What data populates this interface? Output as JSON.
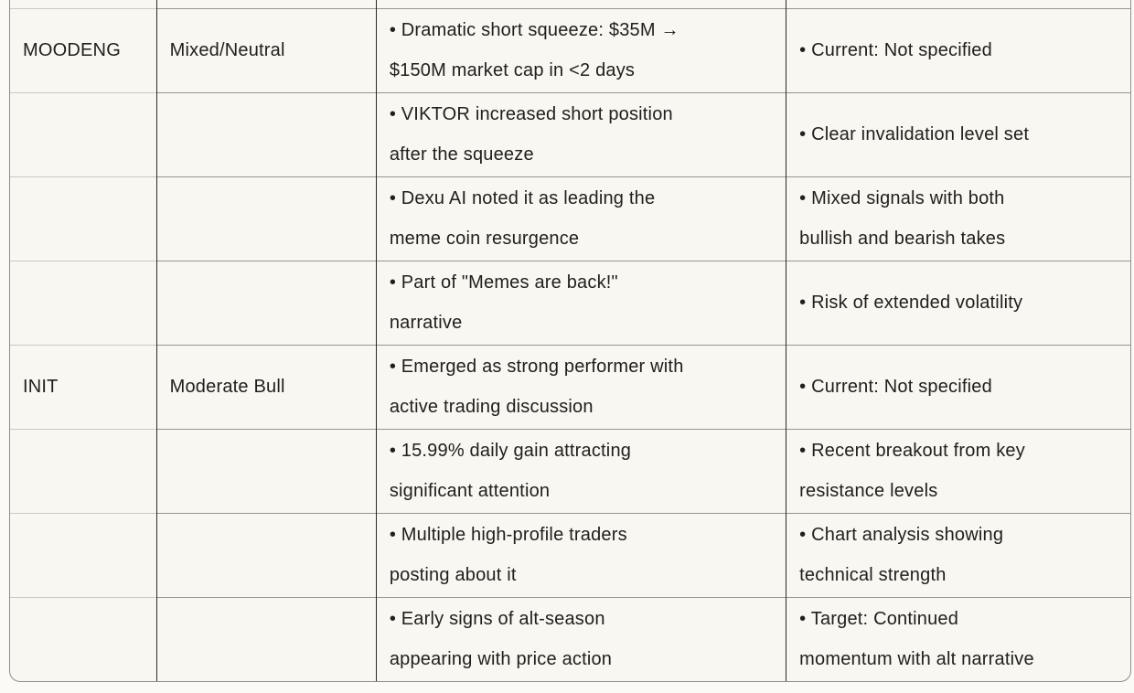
{
  "table": {
    "column_keys": [
      "token",
      "sentiment",
      "details",
      "levels"
    ],
    "rows": [
      {
        "token": "",
        "sentiment": "",
        "details": "",
        "levels": ""
      },
      {
        "token": "MOODENG",
        "sentiment": "Mixed/Neutral",
        "details": "• Dramatic short squeeze: $35M →\n$150M market cap in <2 days",
        "levels": "• Current: Not specified"
      },
      {
        "token": "",
        "sentiment": "",
        "details": "• VIKTOR increased short position\nafter the squeeze",
        "levels": "• Clear invalidation level set"
      },
      {
        "token": "",
        "sentiment": "",
        "details": "• Dexu AI noted it as leading the\nmeme coin resurgence",
        "levels": "• Mixed signals with both\nbullish and bearish takes"
      },
      {
        "token": "",
        "sentiment": "",
        "details": "• Part of \"Memes are back!\"\nnarrative",
        "levels": "• Risk of extended volatility"
      },
      {
        "token": "INIT",
        "sentiment": "Moderate Bull",
        "details": "• Emerged as strong performer with\nactive trading discussion",
        "levels": "• Current: Not specified"
      },
      {
        "token": "",
        "sentiment": "",
        "details": "• 15.99% daily gain attracting\nsignificant attention",
        "levels": "• Recent breakout from key\nresistance levels"
      },
      {
        "token": "",
        "sentiment": "",
        "details": "• Multiple high-profile traders\nposting about it",
        "levels": "• Chart analysis showing\ntechnical strength"
      },
      {
        "token": "",
        "sentiment": "",
        "details": "• Early signs of alt-season\nappearing with price action",
        "levels": "• Target: Continued\nmomentum with alt narrative"
      }
    ]
  },
  "colors": {
    "page_background": "#fbfaf6",
    "table_background": "#f8f7f2",
    "outer_border": "#8e8d88",
    "horizontal_border": "#96958f",
    "horizontal_border_first_column": "#c9c8c3",
    "vertical_border": "#2c2b26",
    "text": "#21201c"
  }
}
